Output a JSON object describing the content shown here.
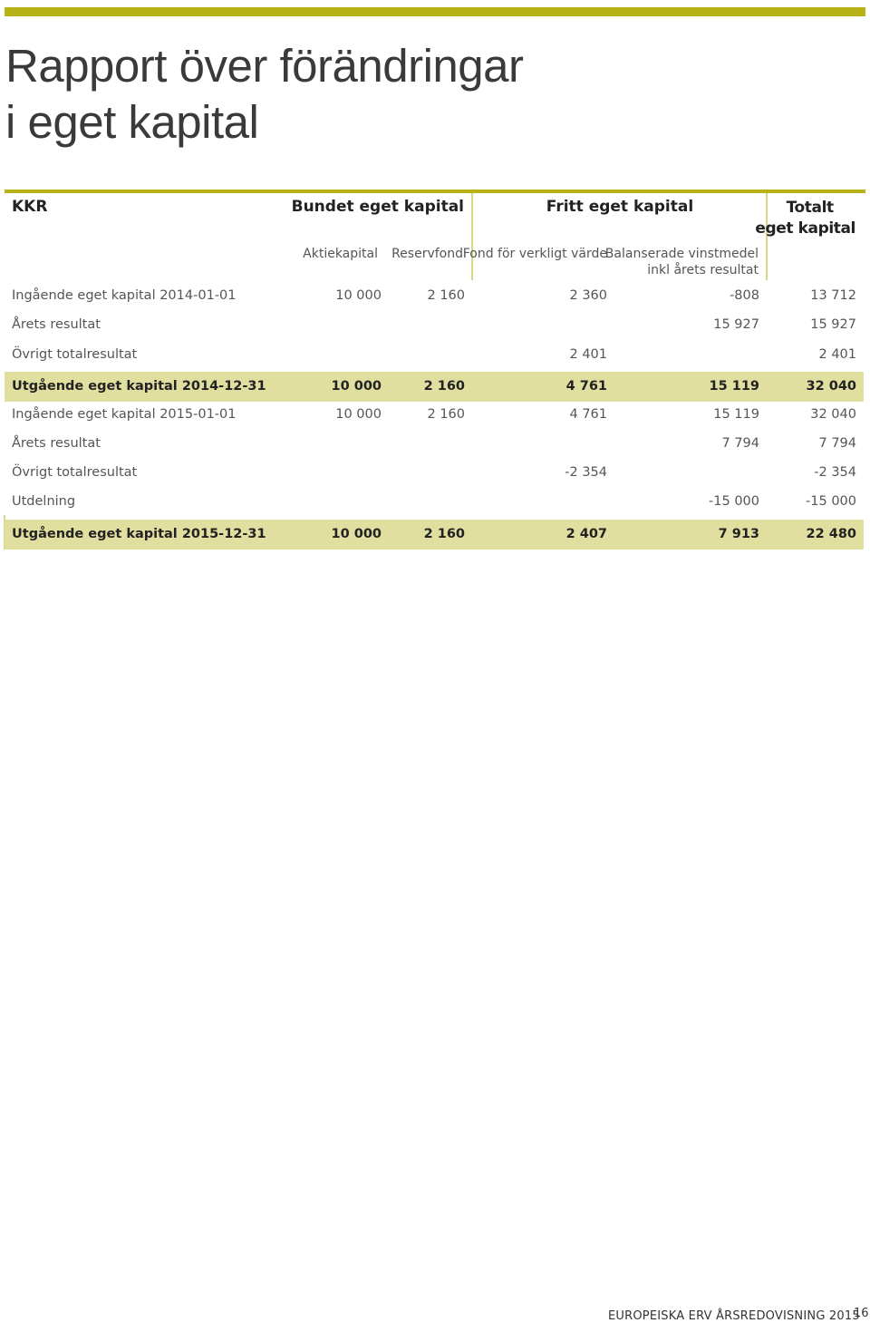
{
  "title_line1": "Rapport över förändringar",
  "title_line2": "i eget kapital",
  "table": {
    "entity": "KKR",
    "group_bundet": "Bundet eget kapital",
    "group_fritt": "Fritt eget kapital",
    "total_line1": "Totalt",
    "total_line2": "eget kapital",
    "col_aktie": "Aktiekapital",
    "col_reserv": "Reservfond",
    "col_fond": "Fond för verkligt värde",
    "col_bal_line1": "Balanserade vinstmedel",
    "col_bal_line2": "inkl årets resultat",
    "rows": [
      {
        "label": "Ingående eget kapital 2014-01-01",
        "aktie": "10 000",
        "reserv": "2 160",
        "fond": "2 360",
        "bal": "-808",
        "total": "13 712"
      },
      {
        "label": "Årets resultat",
        "aktie": "",
        "reserv": "",
        "fond": "",
        "bal": "15 927",
        "total": "15 927"
      },
      {
        "label": "Övrigt totalresultat",
        "aktie": "",
        "reserv": "",
        "fond": "2 401",
        "bal": "",
        "total": "2 401"
      },
      {
        "label": "Utgående eget kapital 2014-12-31",
        "aktie": "10 000",
        "reserv": "2 160",
        "fond": "4 761",
        "bal": "15 119",
        "total": "32 040"
      },
      {
        "label": "Ingående eget kapital 2015-01-01",
        "aktie": "10 000",
        "reserv": "2 160",
        "fond": "4 761",
        "bal": "15 119",
        "total": "32 040"
      },
      {
        "label": "Årets resultat",
        "aktie": "",
        "reserv": "",
        "fond": "",
        "bal": "7 794",
        "total": "7 794"
      },
      {
        "label": "Övrigt totalresultat",
        "aktie": "",
        "reserv": "",
        "fond": "-2 354",
        "bal": "",
        "total": "-2 354"
      },
      {
        "label": "Utdelning",
        "aktie": "",
        "reserv": "",
        "fond": "",
        "bal": "-15 000",
        "total": "-15 000"
      },
      {
        "label": "Utgående eget kapital 2015-12-31",
        "aktie": "10 000",
        "reserv": "2 160",
        "fond": "2 407",
        "bal": "7 913",
        "total": "22 480"
      }
    ]
  },
  "footer": "EUROPEISKA ERV ÅRSREDOVISNING 2015",
  "page_number": "16",
  "colors": {
    "accent": "#b6b218",
    "highlight_row": "#e0dfa0",
    "divider": "#d9d68c"
  }
}
